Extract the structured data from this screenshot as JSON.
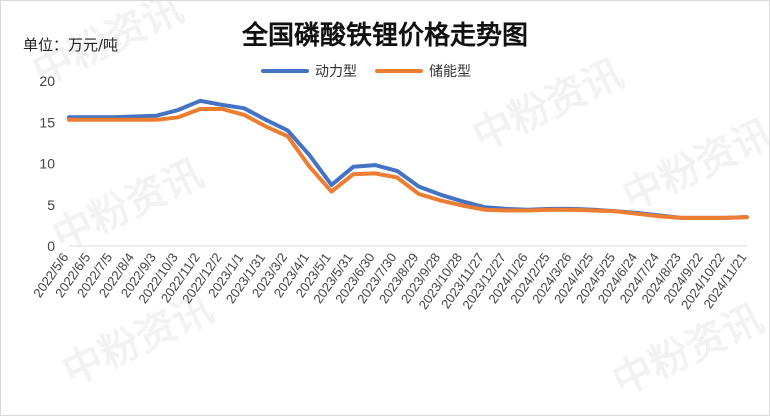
{
  "chart_data": {
    "type": "line",
    "title": "全国磷酸铁锂价格走势图",
    "unit_label": "单位：万元/吨",
    "ylim": [
      0,
      20
    ],
    "y_ticks": [
      "0",
      "5",
      "10",
      "15",
      "20"
    ],
    "grid": false,
    "legend_placement": "top",
    "watermark_text": "中粉资讯",
    "categories": [
      "2022/5/6",
      "2022/6/5",
      "2022/7/5",
      "2022/8/4",
      "2022/9/3",
      "2022/10/3",
      "2022/11/2",
      "2022/12/2",
      "2023/1/1",
      "2023/1/31",
      "2023/3/2",
      "2023/4/1",
      "2023/5/1",
      "2023/5/31",
      "2023/6/30",
      "2023/7/30",
      "2023/8/29",
      "2023/9/28",
      "2023/10/28",
      "2023/11/27",
      "2023/12/27",
      "2024/1/26",
      "2024/2/25",
      "2024/3/26",
      "2024/4/25",
      "2024/5/25",
      "2024/6/24",
      "2024/7/24",
      "2024/8/23",
      "2024/9/22",
      "2024/10/22",
      "2024/11/21"
    ],
    "series": [
      {
        "name": "动力型",
        "color": "#4472C4",
        "values": [
          15.6,
          15.6,
          15.6,
          15.7,
          15.8,
          16.5,
          17.6,
          17.1,
          16.7,
          15.3,
          14.0,
          11.0,
          7.4,
          9.6,
          9.8,
          9.1,
          7.2,
          6.2,
          5.4,
          4.7,
          4.5,
          4.4,
          4.5,
          4.5,
          4.4,
          4.2,
          4.0,
          3.7,
          3.4,
          3.4,
          3.4,
          3.5
        ]
      },
      {
        "name": "储能型",
        "color": "#ED7D31",
        "values": [
          15.3,
          15.3,
          15.3,
          15.3,
          15.3,
          15.6,
          16.6,
          16.6,
          15.9,
          14.5,
          13.3,
          9.6,
          6.6,
          8.7,
          8.8,
          8.3,
          6.3,
          5.5,
          4.9,
          4.4,
          4.3,
          4.3,
          4.4,
          4.4,
          4.3,
          4.2,
          3.9,
          3.6,
          3.4,
          3.4,
          3.4,
          3.5
        ]
      }
    ]
  }
}
